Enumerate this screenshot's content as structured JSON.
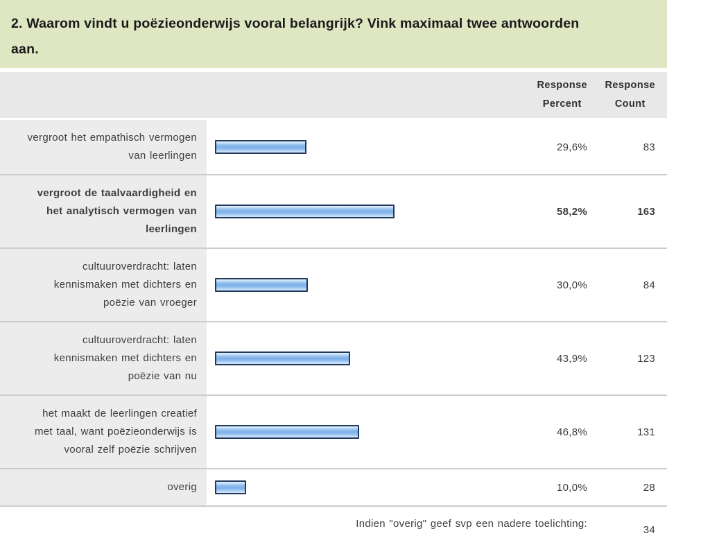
{
  "title": {
    "text": "2. Waarom vindt u poëzieonderwijs vooral belangrijk? Vink maximaal twee antwoorden\naan."
  },
  "header": {
    "percent": "Response\nPercent",
    "count": "Response\nCount"
  },
  "chart_data": {
    "type": "bar",
    "orientation": "horizontal",
    "value_unit": "percent",
    "xlim": [
      0,
      100
    ],
    "rows": [
      {
        "label": "vergroot het empathisch vermogen van leerlingen",
        "label_lines": "vergroot het empathisch vermogen\nvan leerlingen",
        "percent": 29.6,
        "percent_display": "29,6%",
        "count": 83,
        "emphasis": false
      },
      {
        "label": "vergroot de taalvaardigheid en het analytisch vermogen van leerlingen",
        "label_lines": "vergroot de taalvaardigheid en\nhet analytisch vermogen van\nleerlingen",
        "percent": 58.2,
        "percent_display": "58,2%",
        "count": 163,
        "emphasis": true
      },
      {
        "label": "cultuuroverdracht: laten kennismaken met dichters en poëzie van vroeger",
        "label_lines": "cultuuroverdracht: laten\nkennismaken met dichters en\npoëzie van vroeger",
        "percent": 30.0,
        "percent_display": "30,0%",
        "count": 84,
        "emphasis": false
      },
      {
        "label": "cultuuroverdracht: laten kennismaken met dichters en poëzie van nu",
        "label_lines": "cultuuroverdracht: laten\nkennismaken met dichters en\npoëzie van nu",
        "percent": 43.9,
        "percent_display": "43,9%",
        "count": 123,
        "emphasis": false
      },
      {
        "label": "het maakt de leerlingen creatief met taal, want poëzieonderwijs is vooral zelf poëzie schrijven",
        "label_lines": "het maakt de leerlingen creatief\nmet taal, want poëzieonderwijs is\nvooral zelf poëzie schrijven",
        "percent": 46.8,
        "percent_display": "46,8%",
        "count": 131,
        "emphasis": false
      },
      {
        "label": "overig",
        "label_lines": "overig",
        "percent": 10.0,
        "percent_display": "10,0%",
        "count": 28,
        "emphasis": false
      }
    ],
    "followup_row": {
      "label": "Indien \"overig\" geef svp een nadere toelichting:",
      "count": 34
    }
  },
  "colors": {
    "title_bg": "#dee6c2",
    "header_bg": "#e8e8e8",
    "label_bg": "#ececec",
    "separator": "#cccccc",
    "bar_border": "#20395c",
    "bar_fill_light": "#cde4fa",
    "bar_fill_dark": "#7fb0e8",
    "text": "#3d3d3d",
    "title_text": "#1a1a1a"
  }
}
